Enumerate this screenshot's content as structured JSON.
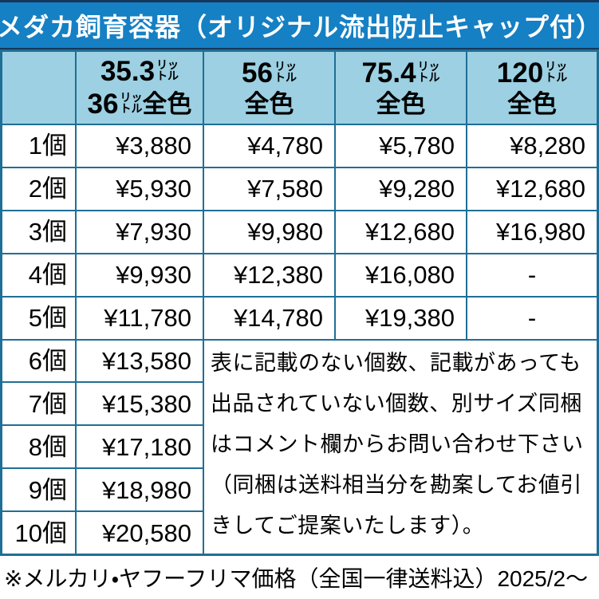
{
  "title": "メダカ飼育容器（オリジナル流出防止キャップ付）",
  "colors": {
    "title_bar_blue": "#1580C4",
    "title_text": "#FFFFFF",
    "header_cell_blue": "#9CD0E2",
    "grid_border_teal": "#1F6F96",
    "navy_edge": "#16375B"
  },
  "table": {
    "unit_top": "リッ",
    "unit_bottom": "トル",
    "columns": [
      {
        "size": "35.3",
        "size2": "36",
        "label": "全色"
      },
      {
        "size": "56",
        "label": "全色"
      },
      {
        "size": "75.4",
        "label": "全色"
      },
      {
        "size": "120",
        "label": "全色"
      }
    ],
    "rows": [
      {
        "label": "1個",
        "prices": [
          "¥3,880",
          "¥4,780",
          "¥5,780",
          "¥8,280"
        ]
      },
      {
        "label": "2個",
        "prices": [
          "¥5,930",
          "¥7,580",
          "¥9,280",
          "¥12,680"
        ]
      },
      {
        "label": "3個",
        "prices": [
          "¥7,930",
          "¥9,980",
          "¥12,680",
          "¥16,980"
        ]
      },
      {
        "label": "4個",
        "prices": [
          "¥9,930",
          "¥12,380",
          "¥16,080",
          "-"
        ]
      },
      {
        "label": "5個",
        "prices": [
          "¥11,780",
          "¥14,780",
          "¥19,380",
          "-"
        ]
      },
      {
        "label": "6個",
        "prices": [
          "¥13,580"
        ]
      },
      {
        "label": "7個",
        "prices": [
          "¥15,380"
        ]
      },
      {
        "label": "8個",
        "prices": [
          "¥17,180"
        ]
      },
      {
        "label": "9個",
        "prices": [
          "¥18,980"
        ]
      },
      {
        "label": "10個",
        "prices": [
          "¥20,580"
        ]
      }
    ],
    "note": "表に記載のない個数、記載があっても出品されていない個数、別サイズ同梱はコメント欄からお問い合わせ下さい（同梱は送料相当分を勘案してお値引きしてご提案いたします）。"
  },
  "footer": "※メルカリ・ヤフーフリマ価格（全国一律送料込）2025/2～"
}
